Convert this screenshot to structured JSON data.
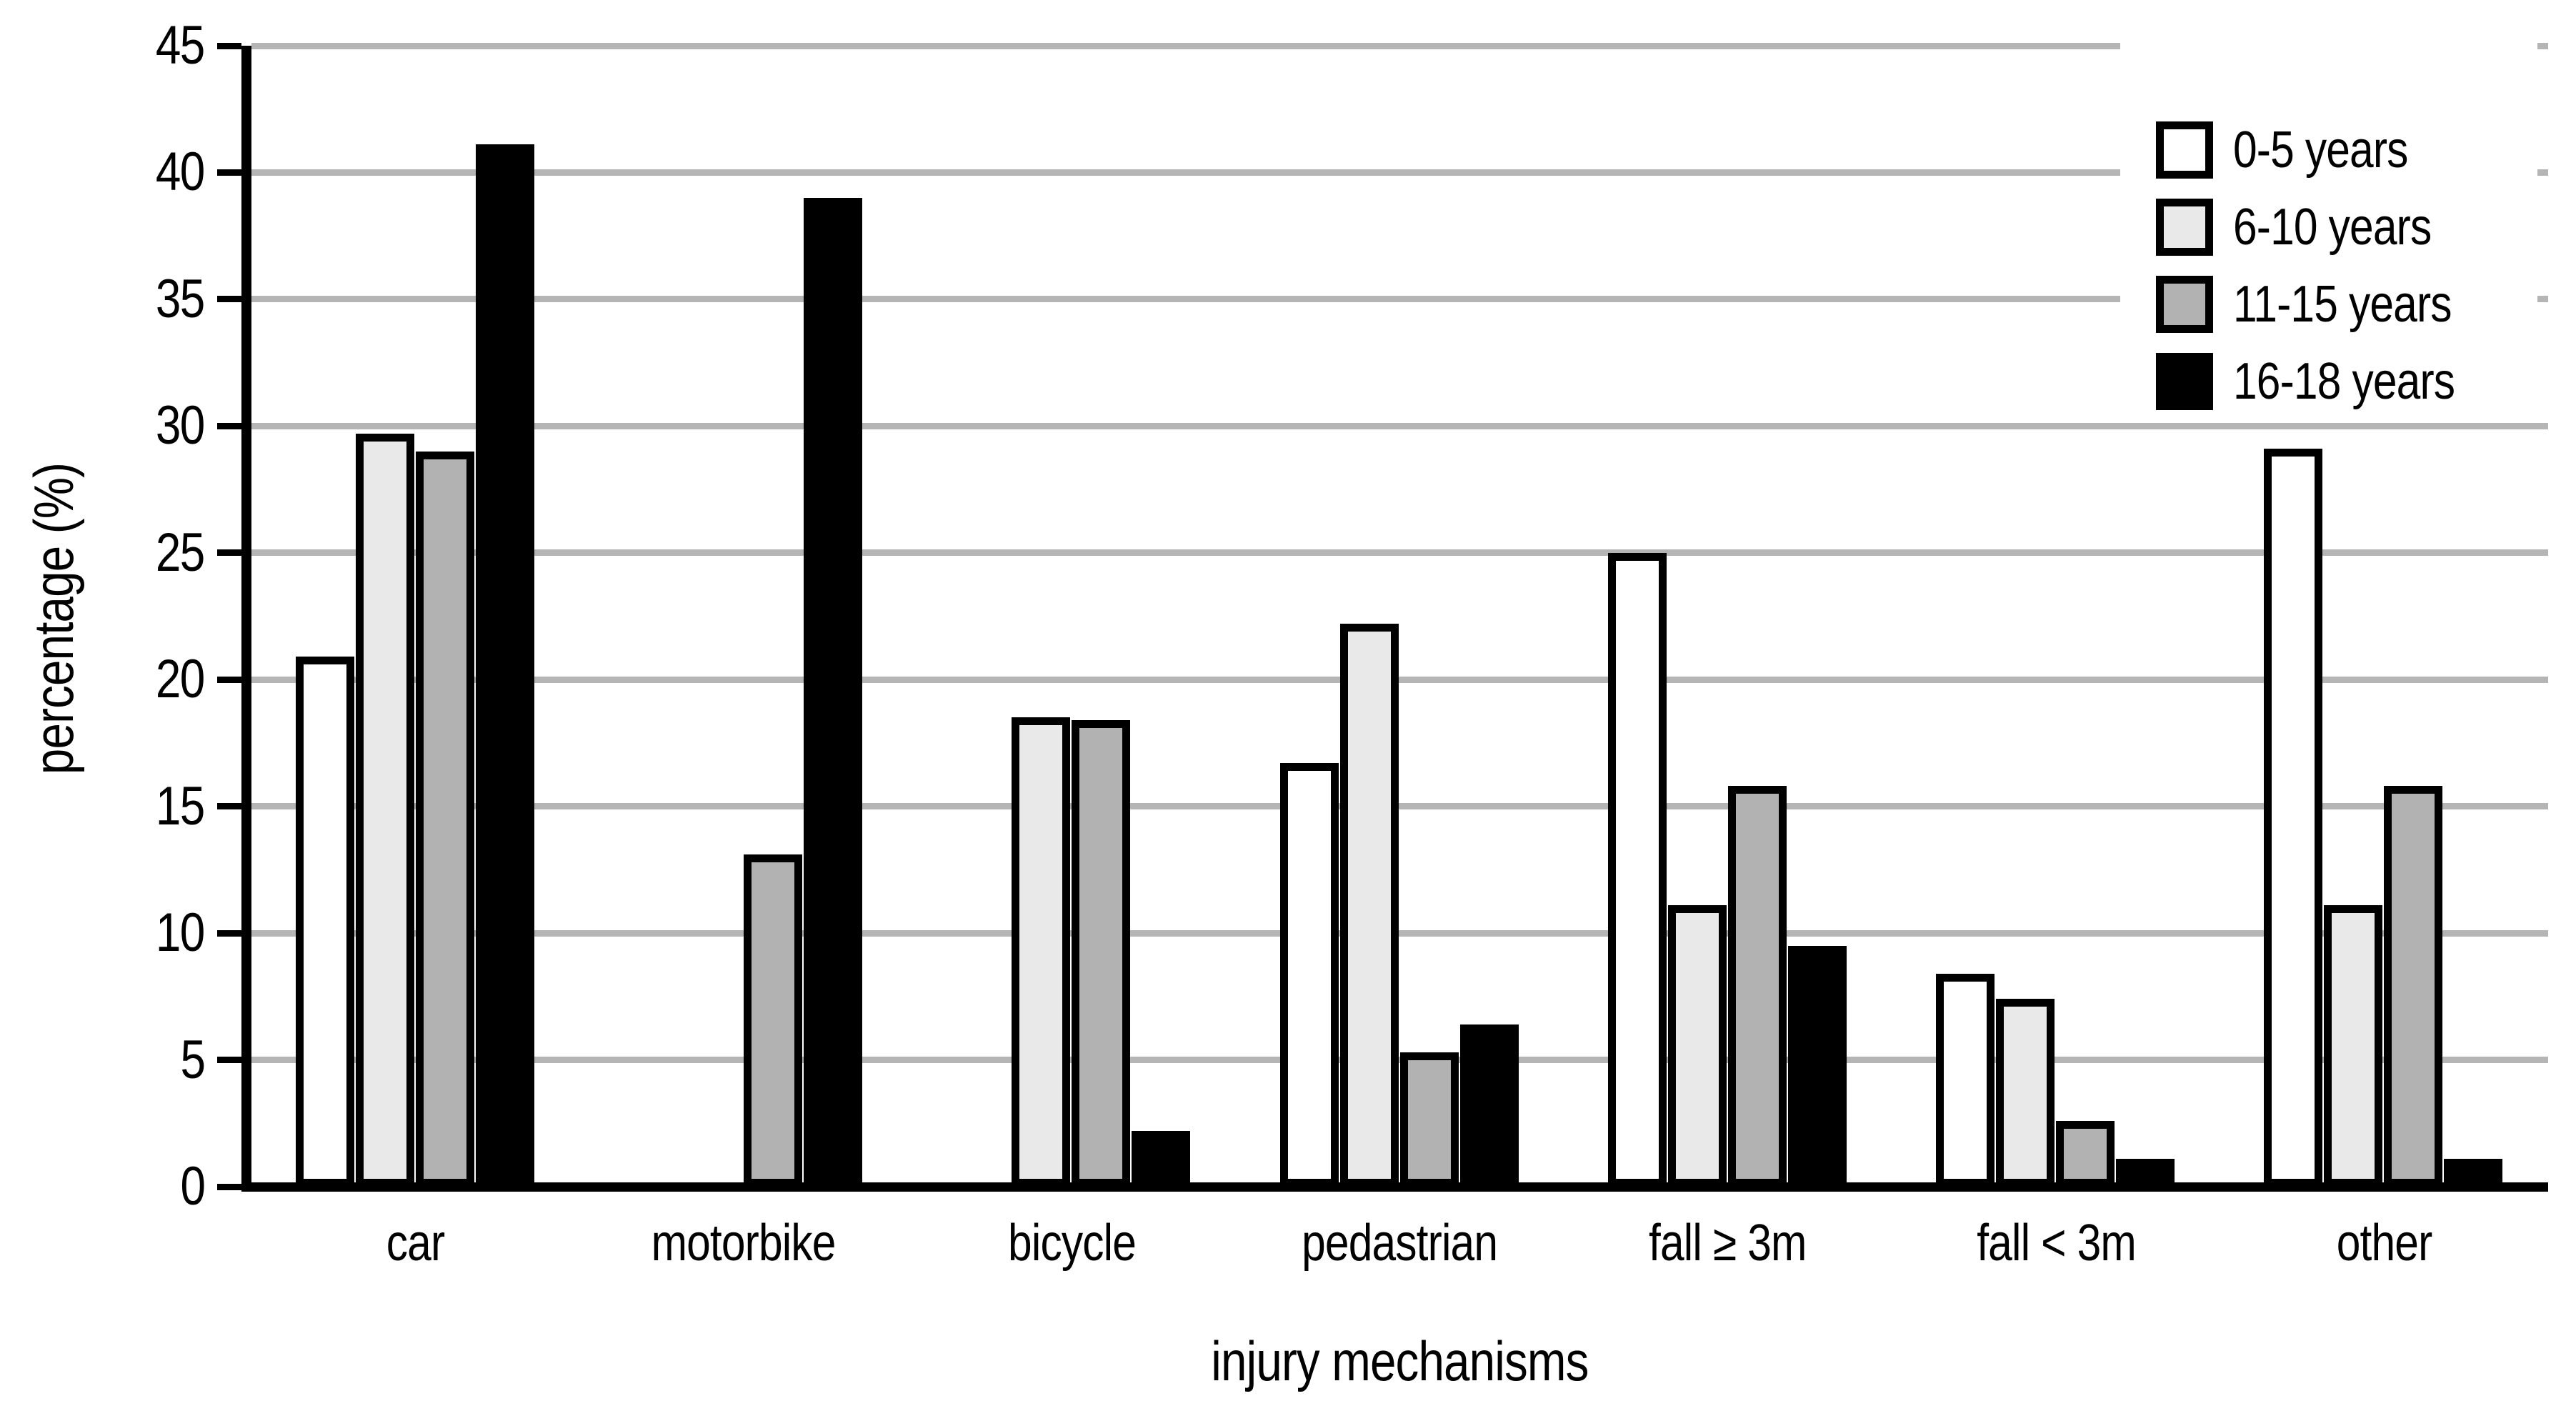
{
  "chart_data": {
    "type": "bar",
    "title": "",
    "xlabel": "injury mechanisms",
    "ylabel": "percentage (%)",
    "ylim": [
      0,
      45
    ],
    "ytick_step": 5,
    "yticks": [
      0,
      5,
      10,
      15,
      20,
      25,
      30,
      35,
      40,
      45
    ],
    "grid": "horizontal gridlines every 5, behind bars",
    "legend_position": "top-right, white box covering gridlines",
    "categories": [
      "car",
      "motorbike",
      "bicycle",
      "pedastrian",
      "fall ≥ 3m",
      "fall < 3m",
      "other"
    ],
    "series": [
      {
        "name": "0-5 years",
        "color": "#ffffff",
        "values": [
          20.9,
          0,
          0,
          16.7,
          25.0,
          8.4,
          29.1
        ]
      },
      {
        "name": "6-10 years",
        "color": "#e9e9e9",
        "values": [
          29.7,
          0,
          18.5,
          22.2,
          11.1,
          7.4,
          11.1
        ]
      },
      {
        "name": "11-15 years",
        "color": "#b2b2b2",
        "values": [
          29.0,
          13.1,
          18.4,
          5.3,
          15.8,
          2.6,
          15.8
        ]
      },
      {
        "name": "16-18 years",
        "color": "#000000",
        "values": [
          41.1,
          39.0,
          2.2,
          6.4,
          9.5,
          1.1,
          1.1
        ]
      }
    ],
    "colors": {
      "background": "#ffffff",
      "axis": "#000000",
      "bar_border": "#000000",
      "gridline": "#b5b5b5"
    }
  }
}
